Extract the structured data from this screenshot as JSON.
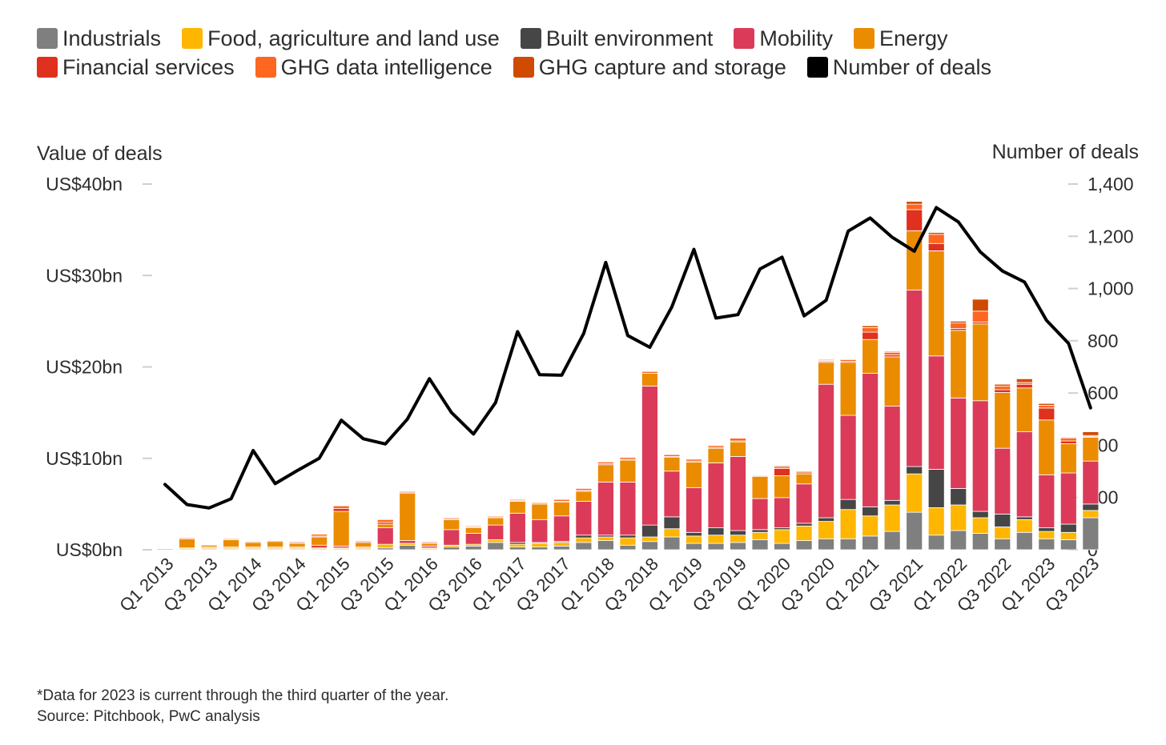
{
  "legend": [
    {
      "name": "Industrials",
      "color": "#7f7f7f"
    },
    {
      "name": "Food, agriculture and land use",
      "color": "#ffb600"
    },
    {
      "name": "Built environment",
      "color": "#464646"
    },
    {
      "name": "Mobility",
      "color": "#db3b59"
    },
    {
      "name": "Energy",
      "color": "#eb8c00"
    },
    {
      "name": "Financial services",
      "color": "#e0301e"
    },
    {
      "name": "GHG data intelligence",
      "color": "#fd6720"
    },
    {
      "name": "GHG capture and storage",
      "color": "#d04a02"
    },
    {
      "name": "Number of deals",
      "color": "#000000"
    }
  ],
  "footnote": "*Data for 2023 is current through the third quarter of the year.",
  "source": "Source: Pitchbook, PwC analysis",
  "chart_data": {
    "type": "bar",
    "subtype": "stacked bar with line on secondary axis",
    "left_axis_title": "Value of deals",
    "right_axis_title": "Number of deals",
    "left_ticks": [
      "US$0bn",
      "US$10bn",
      "US$20bn",
      "US$30bn",
      "US$40bn"
    ],
    "right_ticks": [
      "0",
      "200",
      "400",
      "600",
      "800",
      "1,000",
      "1,200",
      "1,400"
    ],
    "ylim_left": [
      0,
      40
    ],
    "ylim_right": [
      0,
      1400
    ],
    "grid": false,
    "legend_position": "top",
    "x_tick_labels": [
      "Q1 2013",
      "Q3 2013",
      "Q1 2014",
      "Q3 2014",
      "Q1 2015",
      "Q3 2015",
      "Q1 2016",
      "Q3 2016",
      "Q1 2017",
      "Q3 2017",
      "Q1 2018",
      "Q3 2018",
      "Q1 2019",
      "Q3 2019",
      "Q1 2020",
      "Q3 2020",
      "Q1 2021",
      "Q3 2021",
      "Q1 2022",
      "Q3 2022",
      "Q1 2023",
      "Q3 2023"
    ],
    "categories": [
      "Q1 2013",
      "Q2 2013",
      "Q3 2013",
      "Q4 2013",
      "Q1 2014",
      "Q2 2014",
      "Q3 2014",
      "Q4 2014",
      "Q1 2015",
      "Q2 2015",
      "Q3 2015",
      "Q4 2015",
      "Q1 2016",
      "Q2 2016",
      "Q3 2016",
      "Q4 2016",
      "Q1 2017",
      "Q2 2017",
      "Q3 2017",
      "Q4 2017",
      "Q1 2018",
      "Q2 2018",
      "Q3 2018",
      "Q4 2018",
      "Q1 2019",
      "Q2 2019",
      "Q3 2019",
      "Q4 2019",
      "Q1 2020",
      "Q2 2020",
      "Q3 2020",
      "Q4 2020",
      "Q1 2021",
      "Q2 2021",
      "Q3 2021",
      "Q4 2021",
      "Q1 2022",
      "Q2 2022",
      "Q3 2022",
      "Q4 2022",
      "Q1 2023",
      "Q2 2023",
      "Q3 2023"
    ],
    "series": [
      {
        "name": "Industrials",
        "axis": "left",
        "values": [
          0.1,
          0.1,
          0.1,
          0.1,
          0.1,
          0.1,
          0.1,
          0.1,
          0.1,
          0.1,
          0.2,
          0.5,
          0.1,
          0.3,
          0.4,
          0.8,
          0.3,
          0.3,
          0.4,
          0.8,
          1.0,
          0.5,
          0.9,
          1.4,
          0.7,
          0.7,
          0.8,
          1.1,
          0.7,
          1.0,
          1.2,
          1.2,
          1.5,
          2.0,
          4.1,
          1.6,
          2.1,
          1.8,
          1.2,
          1.9,
          1.2,
          1.1,
          3.5
        ]
      },
      {
        "name": "Food, agriculture and land use",
        "axis": "left",
        "values": [
          0.0,
          0.1,
          0.1,
          0.1,
          0.1,
          0.1,
          0.1,
          0.1,
          0.1,
          0.1,
          0.4,
          0.2,
          0.1,
          0.2,
          0.2,
          0.3,
          0.3,
          0.4,
          0.4,
          0.5,
          0.4,
          0.8,
          0.5,
          0.9,
          0.8,
          0.9,
          0.8,
          0.8,
          1.5,
          1.6,
          1.9,
          3.2,
          2.2,
          2.9,
          4.2,
          3.0,
          2.8,
          1.7,
          1.3,
          1.4,
          0.8,
          0.8,
          0.8
        ]
      },
      {
        "name": "Built environment",
        "axis": "left",
        "values": [
          0.0,
          0.0,
          0.0,
          0.0,
          0.0,
          0.0,
          0.0,
          0.0,
          0.0,
          0.0,
          0.0,
          0.0,
          0.0,
          0.0,
          0.0,
          0.0,
          0.2,
          0.1,
          0.1,
          0.3,
          0.2,
          0.3,
          1.3,
          1.3,
          0.4,
          0.8,
          0.5,
          0.3,
          0.2,
          0.3,
          0.4,
          1.1,
          1.0,
          0.5,
          0.8,
          4.2,
          1.8,
          0.7,
          1.4,
          0.3,
          0.4,
          0.9,
          0.7
        ]
      },
      {
        "name": "Mobility",
        "axis": "left",
        "values": [
          0.0,
          0.0,
          0.1,
          0.1,
          0.1,
          0.1,
          0.1,
          0.3,
          0.2,
          0.1,
          1.8,
          0.3,
          0.2,
          1.7,
          1.2,
          1.6,
          3.2,
          2.5,
          2.8,
          3.7,
          5.8,
          5.8,
          15.2,
          5.0,
          4.9,
          7.1,
          8.1,
          3.4,
          3.3,
          4.3,
          14.6,
          9.2,
          14.6,
          10.3,
          19.3,
          12.4,
          9.9,
          12.1,
          7.2,
          9.3,
          5.8,
          5.6,
          4.7
        ]
      },
      {
        "name": "Energy",
        "axis": "left",
        "values": [
          0.0,
          1.0,
          0.2,
          0.8,
          0.5,
          0.6,
          0.4,
          0.9,
          3.8,
          0.5,
          0.4,
          5.2,
          0.3,
          1.1,
          0.6,
          0.8,
          1.3,
          1.7,
          1.5,
          1.1,
          1.9,
          2.4,
          1.4,
          1.5,
          2.8,
          1.6,
          1.6,
          2.4,
          2.4,
          1.1,
          2.4,
          5.8,
          3.7,
          5.4,
          6.5,
          11.5,
          7.4,
          8.4,
          6.1,
          4.8,
          6.0,
          3.2,
          2.6
        ]
      },
      {
        "name": "Financial services",
        "axis": "left",
        "values": [
          0.0,
          0.0,
          0.0,
          0.0,
          0.0,
          0.0,
          0.1,
          0.1,
          0.3,
          0.1,
          0.2,
          0.1,
          0.1,
          0.1,
          0.1,
          0.1,
          0.1,
          0.1,
          0.1,
          0.1,
          0.1,
          0.1,
          0.0,
          0.1,
          0.1,
          0.1,
          0.1,
          0.0,
          0.8,
          0.0,
          0.1,
          0.1,
          0.8,
          0.2,
          2.3,
          0.8,
          0.2,
          0.2,
          0.3,
          0.4,
          1.3,
          0.3,
          0.1
        ]
      },
      {
        "name": "GHG data intelligence",
        "axis": "left",
        "values": [
          0.0,
          0.1,
          0.0,
          0.1,
          0.1,
          0.1,
          0.1,
          0.2,
          0.3,
          0.1,
          0.3,
          0.1,
          0.1,
          0.1,
          0.1,
          0.1,
          0.1,
          0.1,
          0.2,
          0.2,
          0.2,
          0.2,
          0.2,
          0.2,
          0.2,
          0.2,
          0.3,
          0.1,
          0.2,
          0.2,
          0.1,
          0.2,
          0.5,
          0.3,
          0.6,
          1.0,
          0.6,
          1.2,
          0.4,
          0.2,
          0.3,
          0.3,
          0.1
        ]
      },
      {
        "name": "GHG capture and storage",
        "axis": "left",
        "values": [
          0.0,
          0.0,
          0.0,
          0.0,
          0.0,
          0.0,
          0.0,
          0.0,
          0.0,
          0.0,
          0.0,
          0.0,
          0.0,
          0.0,
          0.0,
          0.0,
          0.0,
          0.0,
          0.0,
          0.0,
          0.0,
          0.0,
          0.0,
          0.0,
          0.0,
          0.0,
          0.0,
          0.0,
          0.1,
          0.1,
          0.1,
          0.0,
          0.2,
          0.1,
          0.3,
          0.2,
          0.2,
          1.3,
          0.2,
          0.4,
          0.2,
          0.1,
          0.4
        ]
      },
      {
        "name": "Number of deals",
        "axis": "right",
        "type": "line",
        "values": [
          250,
          173,
          160,
          195,
          380,
          253,
          303,
          350,
          496,
          425,
          405,
          500,
          655,
          525,
          443,
          563,
          835,
          670,
          668,
          828,
          1100,
          820,
          775,
          930,
          1150,
          887,
          900,
          1075,
          1120,
          895,
          955,
          1220,
          1270,
          1196,
          1143,
          1310,
          1255,
          1140,
          1067,
          1025,
          878,
          790,
          543
        ]
      }
    ]
  }
}
